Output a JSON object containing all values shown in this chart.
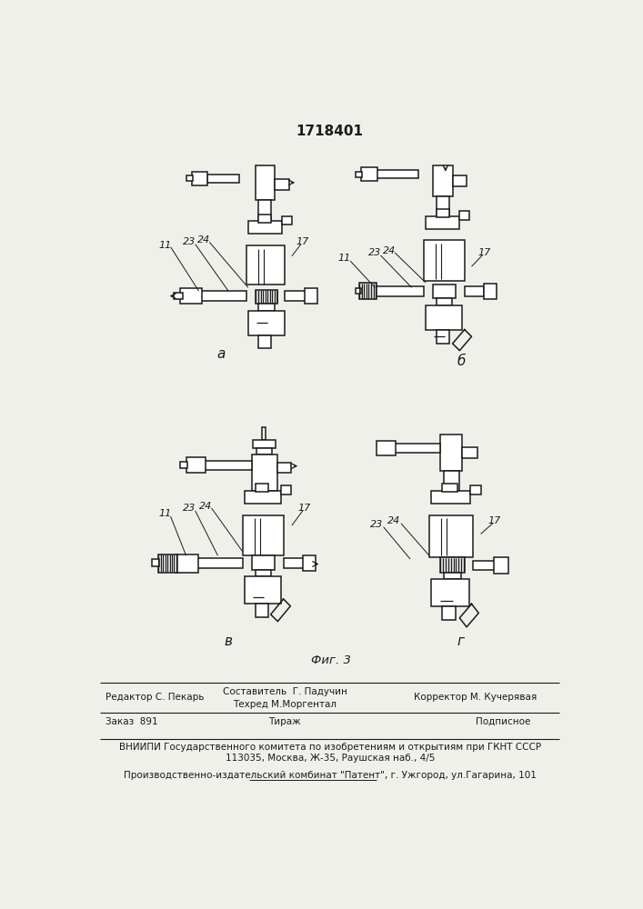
{
  "patent_number": "1718401",
  "bg_color": "#f0f0eb",
  "line_color": "#1a1a1a",
  "text_color": "#1a1a1a",
  "fig_label_a": "а",
  "fig_label_b": "б",
  "fig_label_v": "в",
  "fig_label_g": "г",
  "fig_caption": "Фиг. 3",
  "editor_line": "Редактор С. Пекарь",
  "composer_line": "Составитель  Г. Падучин",
  "techred_line": "Техред М.Моргентал",
  "corrector_line": "Корректор М. Кучерявая",
  "order_line": "Заказ  891",
  "tirazh_line": "Тираж",
  "podpisnoe_line": "Подписное",
  "vniiipi_line": "ВНИИПИ Государственного комитета по изобретениям и открытиям при ГКНТ СССР",
  "address_line": "113035, Москва, Ж-35, Раушская наб., 4/5",
  "factory_line": "Производственно-издательский комбинат \"Патент\", г. Ужгород, ул.Гагарина, 101",
  "label_11": "11",
  "label_23": "23",
  "label_24": "24",
  "label_17": "17"
}
